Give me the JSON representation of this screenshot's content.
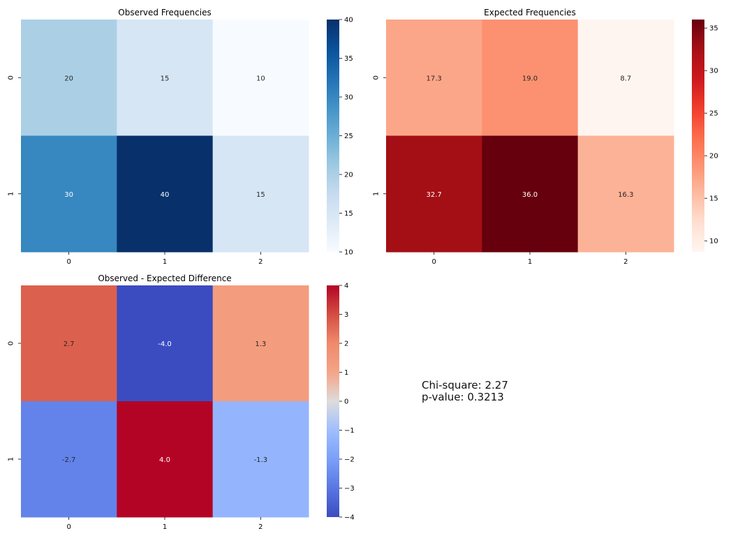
{
  "chart_data": [
    {
      "type": "heatmap",
      "title": "Observed Frequencies",
      "row_labels": [
        "0",
        "1"
      ],
      "col_labels": [
        "0",
        "1",
        "2"
      ],
      "values": [
        [
          20,
          15,
          10
        ],
        [
          30,
          40,
          15
        ]
      ],
      "annotations": [
        [
          "20",
          "15",
          "10"
        ],
        [
          "30",
          "40",
          "15"
        ]
      ],
      "colormap": "Blues",
      "vmin": 10,
      "vmax": 40,
      "colorbar_ticks": [
        "10",
        "15",
        "20",
        "25",
        "30",
        "35",
        "40"
      ],
      "colorbar_tick_values": [
        10,
        15,
        20,
        25,
        30,
        35,
        40
      ]
    },
    {
      "type": "heatmap",
      "title": "Expected Frequencies",
      "row_labels": [
        "0",
        "1"
      ],
      "col_labels": [
        "0",
        "1",
        "2"
      ],
      "values": [
        [
          17.3,
          19.0,
          8.7
        ],
        [
          32.7,
          36.0,
          16.3
        ]
      ],
      "annotations": [
        [
          "17.3",
          "19.0",
          "8.7"
        ],
        [
          "32.7",
          "36.0",
          "16.3"
        ]
      ],
      "colormap": "Reds",
      "vmin": 8.7,
      "vmax": 36.0,
      "colorbar_ticks": [
        "10",
        "15",
        "20",
        "25",
        "30",
        "35"
      ],
      "colorbar_tick_values": [
        10,
        15,
        20,
        25,
        30,
        35
      ]
    },
    {
      "type": "heatmap",
      "title": "Observed - Expected Difference",
      "row_labels": [
        "0",
        "1"
      ],
      "col_labels": [
        "0",
        "1",
        "2"
      ],
      "values": [
        [
          2.7,
          -4.0,
          1.3
        ],
        [
          -2.7,
          4.0,
          -1.3
        ]
      ],
      "annotations": [
        [
          "2.7",
          "-4.0",
          "1.3"
        ],
        [
          "-2.7",
          "4.0",
          "-1.3"
        ]
      ],
      "colormap": "coolwarm",
      "vmin": -4,
      "vmax": 4,
      "colorbar_ticks": [
        "−4",
        "−3",
        "−2",
        "−1",
        "0",
        "1",
        "2",
        "3",
        "4"
      ],
      "colorbar_tick_values": [
        -4,
        -3,
        -2,
        -1,
        0,
        1,
        2,
        3,
        4
      ]
    }
  ],
  "stats": {
    "chi_square": "Chi-square: 2.27",
    "p_value": "p-value: 0.3213"
  }
}
